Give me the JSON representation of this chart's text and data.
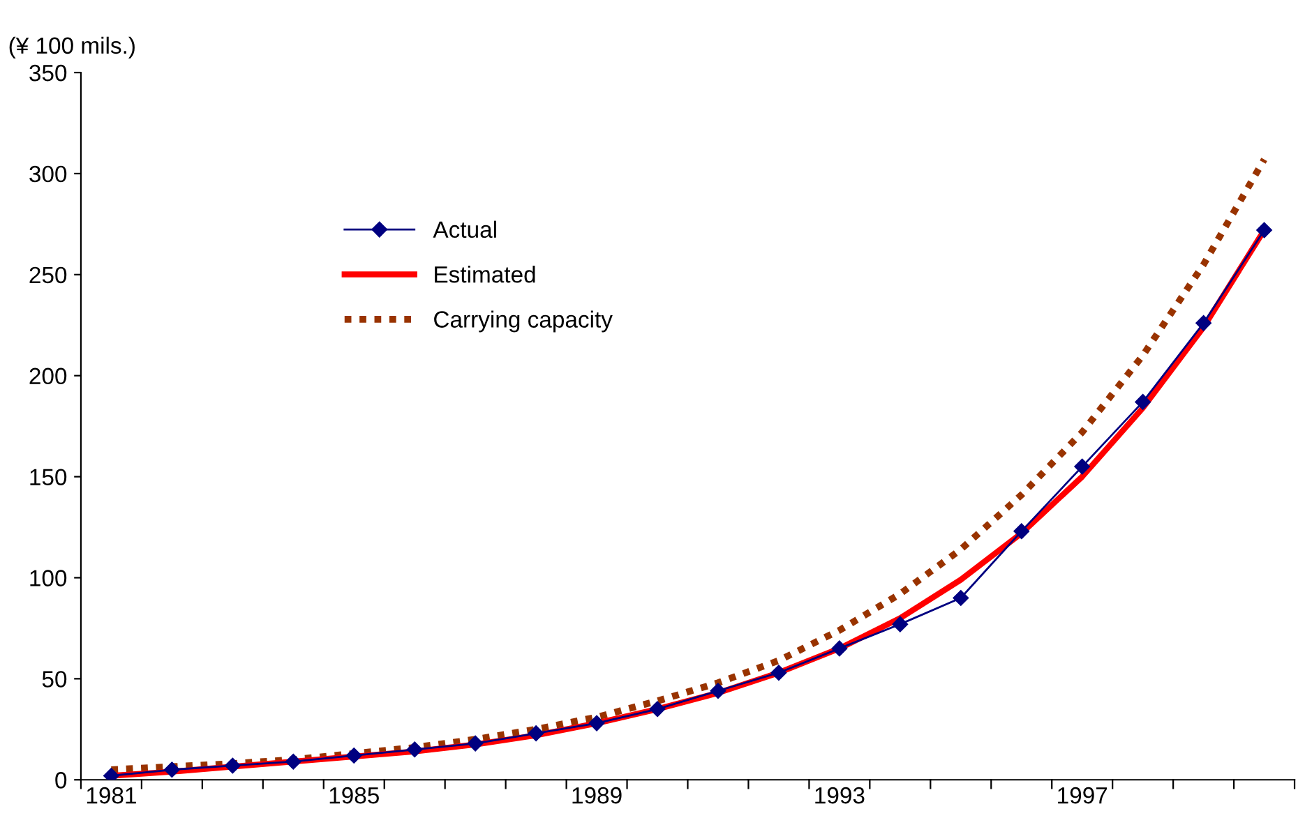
{
  "chart_data": {
    "type": "line",
    "ylabel": "(¥ 100 mils.)",
    "categories": [
      "1981",
      null,
      null,
      null,
      "1985",
      null,
      null,
      null,
      "1989",
      null,
      null,
      null,
      "1993",
      null,
      null,
      null,
      "1997",
      null,
      null,
      null
    ],
    "series": [
      {
        "name": "Actual",
        "color": "#000080",
        "marker": "diamond",
        "line_style": "solid",
        "values": [
          2,
          5,
          7,
          9,
          12,
          15,
          18,
          23,
          28,
          35,
          44,
          53,
          65,
          77,
          90,
          123,
          155,
          187,
          226,
          272
        ]
      },
      {
        "name": "Estimated",
        "color": "#ff0000",
        "marker": "none",
        "line_style": "solid",
        "values": [
          2,
          4,
          6.5,
          9,
          11.5,
          14,
          17.5,
          22,
          28,
          35,
          43,
          53,
          65,
          80,
          99,
          122,
          150,
          184,
          224,
          272
        ]
      },
      {
        "name": "Carrying capacity",
        "color": "#993300",
        "marker": "none",
        "line_style": "dotted",
        "values": [
          5,
          6.5,
          8,
          10,
          13,
          16,
          20,
          25,
          31,
          39,
          48,
          59,
          74,
          92,
          114,
          141,
          172,
          210,
          255,
          307
        ]
      }
    ],
    "ylim": [
      0,
      350
    ],
    "yticks": [
      0,
      50,
      100,
      150,
      200,
      250,
      300,
      350
    ],
    "grid": false,
    "legend": "top left"
  }
}
